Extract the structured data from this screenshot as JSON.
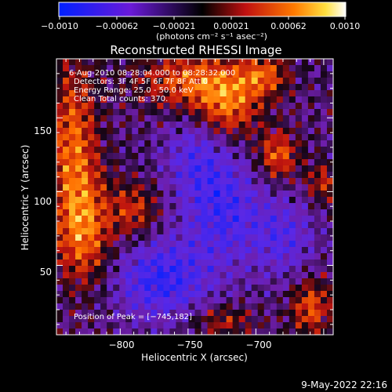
{
  "colorbar": {
    "tick_labels": [
      "−0.0010",
      "−0.00062",
      "−0.00021",
      "0.00021",
      "0.00062",
      "0.0010"
    ],
    "unit_label": "(photons cm⁻² s⁻¹ asec⁻²)",
    "range": [
      -0.001,
      0.001
    ]
  },
  "chart_data": {
    "type": "heatmap",
    "title": "Reconstructed RHESSI Image",
    "xlabel": "Heliocentric X (arcsec)",
    "ylabel": "Heliocentric Y (arcsec)",
    "xlim": [
      -847,
      -643
    ],
    "ylim": [
      3,
      190
    ],
    "xticks": [
      -800,
      -750,
      -700
    ],
    "xtick_labels": [
      "−800",
      "−750",
      "−700"
    ],
    "yticks": [
      50,
      100,
      150
    ],
    "ytick_labels": [
      "50",
      "100",
      "150"
    ],
    "colormap": "blue-purple-black-red-orange-yellow-white",
    "hot_regions_note": "bright emission along left and top edges, blue/purple low values center and lower middle",
    "annotations": [
      "6-Aug-2010 08:28:04.000 to 08:28:32.000",
      "Detectors: 3F 4F 5F 6F 7F 8F  Att 0",
      "Energy Range: 25.0 - 50.0 keV",
      "Clean    Total counts: 370.",
      "Position of Peak = [−745,182]"
    ]
  },
  "footer": {
    "timestamp": "9-May-2022 22:16"
  }
}
